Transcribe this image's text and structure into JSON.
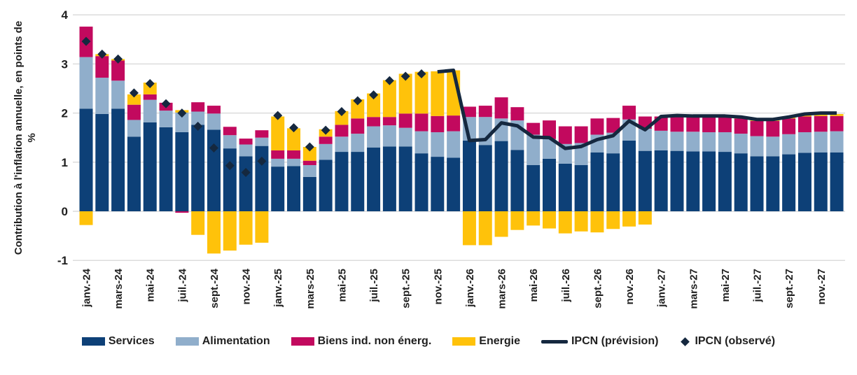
{
  "chart_data": {
    "type": "bar",
    "stacked": true,
    "title": "",
    "ylabel_lines": [
      "Contribution à l'inflation annuelle, en points de",
      "%"
    ],
    "yticks": [
      4,
      3,
      2,
      1,
      0,
      -1
    ],
    "ylim": [
      -1.05,
      4.05
    ],
    "grid": true,
    "legend_position": "bottom",
    "months": [
      "janv.-24",
      "févr.-24",
      "mars-24",
      "avr.-24",
      "mai-24",
      "juin-24",
      "juil.-24",
      "août-24",
      "sept.-24",
      "oct.-24",
      "nov.-24",
      "déc.-24",
      "janv.-25",
      "févr.-25",
      "mars-25",
      "avr.-25",
      "mai-25",
      "juin-25",
      "juil.-25",
      "août-25",
      "sept.-25",
      "oct.-25",
      "nov.-25",
      "déc.-25",
      "janv.-26",
      "févr.-26",
      "mars-26",
      "avr.-26",
      "mai-26",
      "juin-26",
      "juil.-26",
      "août-26",
      "sept.-26",
      "oct.-26",
      "nov.-26",
      "déc.-26",
      "janv.-27",
      "févr.-27",
      "mars-27",
      "avr.-27",
      "mai-27",
      "juin-27",
      "juil.-27",
      "août-27",
      "sept.-27",
      "oct.-27",
      "nov.-27",
      "déc.-27"
    ],
    "x_tick_every": 2,
    "series": [
      {
        "name": "Services",
        "color": "#0d4077",
        "values": [
          2.09,
          1.98,
          2.09,
          1.52,
          1.81,
          1.71,
          1.61,
          1.76,
          1.66,
          1.28,
          1.12,
          1.33,
          0.91,
          0.92,
          0.7,
          1.05,
          1.21,
          1.21,
          1.3,
          1.32,
          1.32,
          1.18,
          1.11,
          1.09,
          1.44,
          1.35,
          1.43,
          1.25,
          0.94,
          1.07,
          0.97,
          0.94,
          1.2,
          1.18,
          1.44,
          1.23,
          1.24,
          1.23,
          1.22,
          1.22,
          1.21,
          1.18,
          1.12,
          1.12,
          1.16,
          1.19,
          1.2,
          1.2
        ]
      },
      {
        "name": "Alimentation",
        "color": "#90aecb",
        "values": [
          1.05,
          0.74,
          0.57,
          0.34,
          0.46,
          0.34,
          0.4,
          0.27,
          0.33,
          0.27,
          0.24,
          0.17,
          0.16,
          0.15,
          0.24,
          0.32,
          0.31,
          0.37,
          0.43,
          0.43,
          0.38,
          0.45,
          0.5,
          0.54,
          0.48,
          0.57,
          0.46,
          0.6,
          0.62,
          0.4,
          0.4,
          0.45,
          0.36,
          0.42,
          0.43,
          0.45,
          0.4,
          0.39,
          0.4,
          0.39,
          0.4,
          0.4,
          0.41,
          0.4,
          0.41,
          0.42,
          0.42,
          0.43
        ]
      },
      {
        "name": "Biens ind. non énerg.",
        "color": "#c2095e",
        "values": [
          0.62,
          0.44,
          0.41,
          0.31,
          0.11,
          0.16,
          -0.03,
          0.19,
          0.16,
          0.17,
          0.12,
          0.15,
          0.17,
          0.17,
          0.09,
          0.15,
          0.24,
          0.31,
          0.19,
          0.17,
          0.29,
          0.36,
          0.33,
          0.32,
          0.21,
          0.23,
          0.43,
          0.27,
          0.24,
          0.38,
          0.36,
          0.34,
          0.33,
          0.3,
          0.28,
          0.25,
          0.29,
          0.31,
          0.29,
          0.3,
          0.31,
          0.31,
          0.31,
          0.32,
          0.32,
          0.32,
          0.32,
          0.31
        ]
      },
      {
        "name": "Energie",
        "color": "#ffc20a",
        "values": [
          -0.28,
          0.04,
          0.03,
          0.21,
          0.24,
          0.0,
          0.05,
          -0.48,
          -0.86,
          -0.8,
          -0.68,
          -0.64,
          0.69,
          0.45,
          0.28,
          0.15,
          0.28,
          0.39,
          0.48,
          0.75,
          0.81,
          0.85,
          0.91,
          0.92,
          -0.69,
          -0.69,
          -0.52,
          -0.38,
          -0.29,
          -0.35,
          -0.45,
          -0.41,
          -0.43,
          -0.36,
          -0.31,
          -0.27,
          0.0,
          0.02,
          0.03,
          0.03,
          0.02,
          0.03,
          0.03,
          0.03,
          0.03,
          0.03,
          0.04,
          0.04
        ]
      }
    ],
    "ipcn_observe": {
      "name": "IPCN (observé)",
      "color": "#15283f",
      "start_index": 0,
      "values": [
        3.46,
        3.2,
        3.1,
        2.41,
        2.6,
        2.19,
        2.0,
        1.73,
        1.29,
        0.93,
        0.79,
        1.02,
        1.95,
        1.7,
        1.31,
        1.65,
        2.03,
        2.25,
        2.37,
        2.66,
        2.75,
        2.8
      ]
    },
    "ipcn_prevision": {
      "name": "IPCN (prévision)",
      "color": "#15283f",
      "start_index": 22,
      "values": [
        2.84,
        2.87,
        1.44,
        1.46,
        1.8,
        1.74,
        1.51,
        1.5,
        1.28,
        1.32,
        1.46,
        1.54,
        1.84,
        1.66,
        1.93,
        1.95,
        1.94,
        1.94,
        1.94,
        1.92,
        1.87,
        1.87,
        1.92,
        1.98,
        2.0,
        2.0
      ]
    }
  },
  "legend": {
    "items": [
      {
        "label": "Services",
        "type": "swatch",
        "color": "#0d4077"
      },
      {
        "label": "Alimentation",
        "type": "swatch",
        "color": "#90aecb"
      },
      {
        "label": "Biens ind. non énerg.",
        "type": "swatch",
        "color": "#c2095e"
      },
      {
        "label": "Energie",
        "type": "swatch",
        "color": "#ffc20a"
      },
      {
        "label": "IPCN (prévision)",
        "type": "line",
        "color": "#15283f"
      },
      {
        "label": "IPCN (observé)",
        "type": "diamond",
        "color": "#15283f"
      }
    ]
  },
  "colors": {
    "background": "#ffffff",
    "gridline": "#dcdcdc",
    "text": "#1f1f1f"
  }
}
